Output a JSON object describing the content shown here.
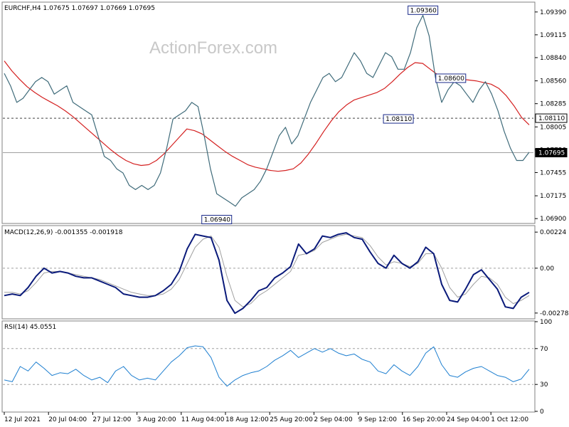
{
  "watermark": "ActionForex.com",
  "colors": {
    "price": "#3f6b7a",
    "ma": "#d42020",
    "macd": "#0a1a7a",
    "signal": "#a0a0a0",
    "rsi": "#1e7fd0",
    "grid": "#a0a0a0",
    "frame": "#808080"
  },
  "chart_data": [
    {
      "type": "line",
      "title": "EURCHF,H4 1.07675 1.07697 1.07669 1.07695",
      "ylim": [
        1.0685,
        1.095
      ],
      "y_ticks": [
        "1.09390",
        "1.09115",
        "1.08840",
        "1.08560",
        "1.08285",
        "1.08005",
        "1.07730",
        "1.07455",
        "1.07175",
        "1.06900"
      ],
      "tick_values": [
        1.0939,
        1.09115,
        1.0884,
        1.0856,
        1.08285,
        1.08005,
        1.0773,
        1.07455,
        1.07175,
        1.069
      ],
      "x_labels": [
        "12 Jul 2021",
        "20 Jul 04:00",
        "27 Jul 12:00",
        "3 Aug 20:00",
        "11 Aug 04:00",
        "18 Aug 12:00",
        "25 Aug 20:00",
        "2 Sep 04:00",
        "9 Sep 12:00",
        "16 Sep 20:00",
        "24 Sep 04:00",
        "1 Oct 12:00"
      ],
      "levels": [
        {
          "value": 1.0811,
          "label": "1.08110",
          "style": "dashed"
        },
        {
          "value": 1.07695,
          "label": "1.07695",
          "style": "solid"
        }
      ],
      "annotations": [
        {
          "x": 67,
          "value": 1.0936,
          "label": "1.09360"
        },
        {
          "x": 71,
          "value": 1.086,
          "label": "1.08600"
        },
        {
          "x": 65,
          "value": 1.0811,
          "label": "1.08110"
        },
        {
          "x": 34,
          "value": 1.0694,
          "label": "1.06940"
        }
      ],
      "series": [
        {
          "values": [
            1.0865,
            1.085,
            1.083,
            1.0835,
            1.0845,
            1.0855,
            1.086,
            1.0855,
            1.084,
            1.0845,
            1.085,
            1.083,
            1.0825,
            1.082,
            1.0815,
            1.079,
            1.0765,
            1.076,
            1.075,
            1.0745,
            1.073,
            1.0725,
            1.073,
            1.0725,
            1.073,
            1.0745,
            1.0775,
            1.081,
            1.0815,
            1.082,
            1.083,
            1.0825,
            1.079,
            1.075,
            1.072,
            1.0715,
            1.071,
            1.0705,
            1.0715,
            1.072,
            1.0725,
            1.0735,
            1.075,
            1.077,
            1.079,
            1.08,
            1.078,
            1.079,
            1.081,
            1.083,
            1.0845,
            1.086,
            1.0865,
            1.0855,
            1.086,
            1.0875,
            1.089,
            1.088,
            1.0865,
            1.086,
            1.0875,
            1.089,
            1.0885,
            1.087,
            1.087,
            1.089,
            1.092,
            1.0935,
            1.091,
            1.086,
            1.083,
            1.0845,
            1.0855,
            1.085,
            1.084,
            1.083,
            1.0845,
            1.0855,
            1.084,
            1.082,
            1.0795,
            1.0775,
            1.076,
            1.076,
            1.077
          ]
        },
        {
          "values": [
            1.088,
            1.0868,
            1.0858,
            1.0849,
            1.0842,
            1.0836,
            1.0831,
            1.0826,
            1.082,
            1.0813,
            1.0805,
            1.0797,
            1.0789,
            1.0781,
            1.0773,
            1.0766,
            1.076,
            1.0756,
            1.0754,
            1.0755,
            1.076,
            1.0768,
            1.0778,
            1.0788,
            1.0798,
            1.0796,
            1.0792,
            1.0785,
            1.0778,
            1.0771,
            1.0765,
            1.076,
            1.0755,
            1.0752,
            1.075,
            1.0748,
            1.0747,
            1.0748,
            1.075,
            1.0757,
            1.0768,
            1.0781,
            1.0795,
            1.0808,
            1.0819,
            1.0827,
            1.0833,
            1.0836,
            1.0839,
            1.0842,
            1.0847,
            1.0855,
            1.0864,
            1.0872,
            1.0878,
            1.0877,
            1.087,
            1.0863,
            1.0859,
            1.0858,
            1.0858,
            1.0857,
            1.0856,
            1.0854,
            1.0852,
            1.0847,
            1.0838,
            1.0826,
            1.0812,
            1.0803
          ]
        }
      ]
    },
    {
      "type": "line",
      "title": "MACD(12,26,9) -0.001355 -0.001918",
      "ylim": [
        -0.0031,
        0.0026
      ],
      "y_ticks": [
        "0.00224",
        "0.00",
        "-0.002785"
      ],
      "tick_values": [
        0.00224,
        0.0,
        -0.002785
      ],
      "level_lines": [
        0.0
      ],
      "series": [
        {
          "values": [
            -0.0017,
            -0.0016,
            -0.0017,
            -0.0012,
            -0.0005,
            0.0,
            -0.0003,
            -0.0002,
            -0.0003,
            -0.0005,
            -0.0006,
            -0.0006,
            -0.0008,
            -0.001,
            -0.0012,
            -0.0016,
            -0.0017,
            -0.0018,
            -0.0018,
            -0.0017,
            -0.0014,
            -0.001,
            -0.0002,
            0.0012,
            0.0021,
            0.002,
            0.0019,
            0.0005,
            -0.002,
            -0.0028,
            -0.0025,
            -0.002,
            -0.0014,
            -0.0012,
            -0.0006,
            -0.0003,
            0.0001,
            0.0015,
            0.0009,
            0.0012,
            0.002,
            0.0019,
            0.0021,
            0.0022,
            0.0019,
            0.0018,
            0.001,
            0.0003,
            0.0,
            0.0008,
            0.0003,
            0.0,
            0.0004,
            0.0013,
            0.0009,
            -0.001,
            -0.002,
            -0.0021,
            -0.0013,
            -0.0004,
            -0.0001,
            -0.0007,
            -0.0013,
            -0.0024,
            -0.0025,
            -0.0018,
            -0.0015
          ]
        },
        {
          "values": [
            -0.0015,
            -0.0015,
            -0.0016,
            -0.0014,
            -0.0009,
            -0.0003,
            -0.0002,
            -0.0002,
            -0.0003,
            -0.0004,
            -0.0005,
            -0.0006,
            -0.0007,
            -0.0009,
            -0.0011,
            -0.0013,
            -0.0015,
            -0.0016,
            -0.0017,
            -0.0017,
            -0.0016,
            -0.0013,
            -0.0007,
            0.0003,
            0.0013,
            0.0018,
            0.002,
            0.0013,
            -0.0005,
            -0.002,
            -0.0024,
            -0.0022,
            -0.0017,
            -0.0014,
            -0.001,
            -0.0006,
            -0.0002,
            0.0008,
            0.0009,
            0.0011,
            0.0016,
            0.0018,
            0.002,
            0.0021,
            0.002,
            0.0019,
            0.0014,
            0.0007,
            0.0002,
            0.0004,
            0.0003,
            0.0001,
            0.0003,
            0.0009,
            0.0009,
            0.0,
            -0.0012,
            -0.0018,
            -0.0016,
            -0.001,
            -0.0005,
            -0.0006,
            -0.001,
            -0.0018,
            -0.0022,
            -0.002,
            -0.0017
          ]
        }
      ]
    },
    {
      "type": "line",
      "title": "RSI(14) 45.0551",
      "ylim": [
        0,
        100
      ],
      "y_ticks": [
        "100",
        "70",
        "30",
        "0"
      ],
      "tick_values": [
        100,
        70,
        30,
        0
      ],
      "level_lines": [
        70,
        30
      ],
      "series": [
        {
          "values": [
            35,
            33,
            50,
            45,
            55,
            48,
            40,
            43,
            42,
            47,
            40,
            35,
            38,
            32,
            45,
            50,
            40,
            35,
            37,
            35,
            45,
            55,
            62,
            71,
            73,
            72,
            60,
            38,
            28,
            35,
            40,
            43,
            45,
            50,
            57,
            62,
            68,
            60,
            65,
            70,
            66,
            70,
            65,
            62,
            64,
            58,
            55,
            45,
            42,
            52,
            45,
            40,
            50,
            65,
            72,
            52,
            40,
            38,
            44,
            48,
            50,
            45,
            40,
            38,
            33,
            36,
            47
          ]
        }
      ]
    }
  ]
}
